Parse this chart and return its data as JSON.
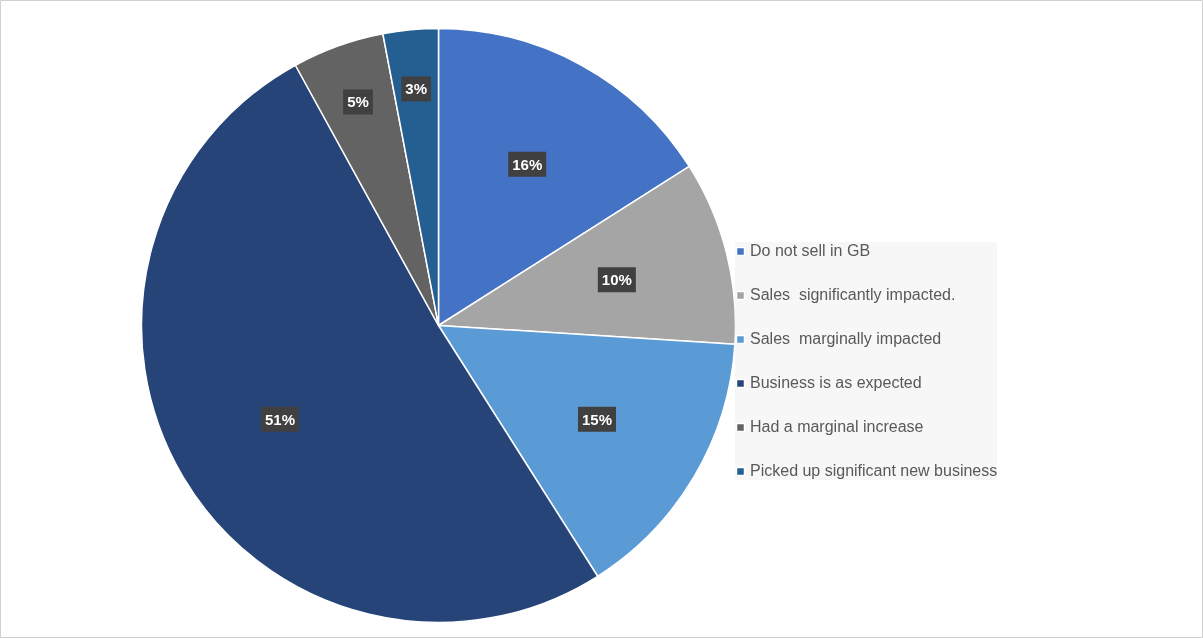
{
  "chart_data": {
    "type": "pie",
    "categories": [
      "Do not sell in GB",
      "Sales  significantly impacted.",
      "Sales  marginally impacted",
      "Business is as expected",
      "Had a marginal increase",
      "Picked up significant new business"
    ],
    "values": [
      16,
      10,
      15,
      51,
      5,
      3
    ],
    "colors": [
      "#4472c4",
      "#a5a5a5",
      "#5b9bd5",
      "#264478",
      "#636363",
      "#255e91"
    ],
    "value_labels": [
      "16%",
      "10%",
      "15%",
      "51%",
      "5%",
      "3%"
    ],
    "legend": "right"
  }
}
